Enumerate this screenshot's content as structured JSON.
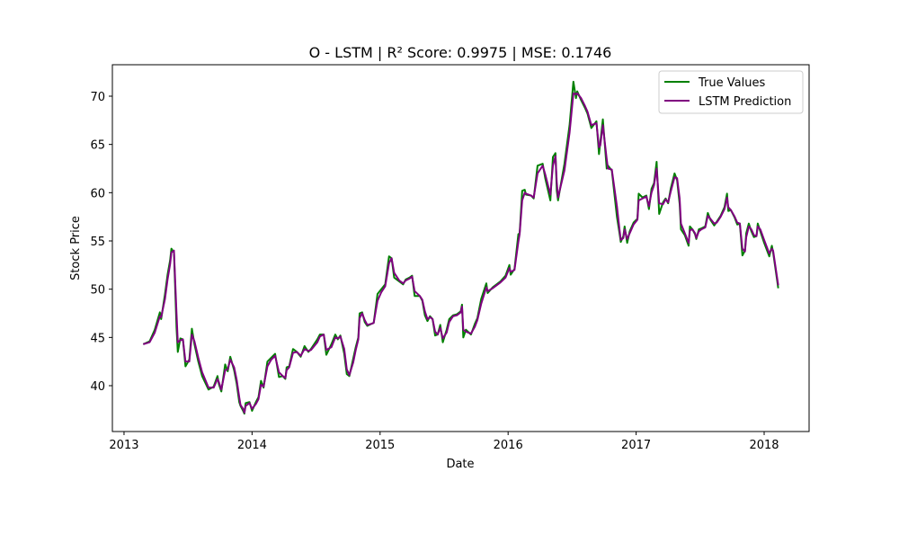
{
  "chart_data": {
    "type": "line",
    "title": "O - LSTM | R² Score: 0.9975 | MSE: 0.1746",
    "x_label": "Date",
    "y_label": "Stock Price",
    "x": [
      2013.15,
      2013.2,
      2013.24,
      2013.28,
      2013.29,
      2013.32,
      2013.34,
      2013.36,
      2013.37,
      2013.39,
      2013.41,
      2013.42,
      2013.44,
      2013.46,
      2013.48,
      2013.51,
      2013.53,
      2013.55,
      2013.58,
      2013.61,
      2013.66,
      2013.7,
      2013.73,
      2013.74,
      2013.76,
      2013.79,
      2013.81,
      2013.83,
      2013.86,
      2013.88,
      2013.9,
      2013.91,
      2013.93,
      2013.94,
      2013.95,
      2013.98,
      2014.0,
      2014.03,
      2014.05,
      2014.07,
      2014.09,
      2014.12,
      2014.15,
      2014.18,
      2014.21,
      2014.24,
      2014.26,
      2014.27,
      2014.29,
      2014.32,
      2014.35,
      2014.38,
      2014.41,
      2014.44,
      2014.46,
      2014.51,
      2014.53,
      2014.56,
      2014.58,
      2014.62,
      2014.65,
      2014.67,
      2014.69,
      2014.72,
      2014.74,
      2014.76,
      2014.79,
      2014.81,
      2014.83,
      2014.84,
      2014.86,
      2014.88,
      2014.9,
      2014.93,
      2014.95,
      2014.98,
      2015.01,
      2015.04,
      2015.07,
      2015.09,
      2015.11,
      2015.15,
      2015.18,
      2015.2,
      2015.23,
      2015.25,
      2015.27,
      2015.31,
      2015.33,
      2015.35,
      2015.37,
      2015.39,
      2015.41,
      2015.43,
      2015.45,
      2015.47,
      2015.49,
      2015.52,
      2015.54,
      2015.57,
      2015.6,
      2015.63,
      2015.64,
      2015.65,
      2015.67,
      2015.71,
      2015.74,
      2015.76,
      2015.79,
      2015.83,
      2015.84,
      2015.88,
      2015.94,
      2015.98,
      2016.01,
      2016.02,
      2016.05,
      2016.08,
      2016.09,
      2016.11,
      2016.13,
      2016.14,
      2016.18,
      2016.2,
      2016.23,
      2016.27,
      2016.29,
      2016.33,
      2016.35,
      2016.37,
      2016.38,
      2016.39,
      2016.44,
      2016.48,
      2016.51,
      2016.53,
      2016.54,
      2016.57,
      2016.6,
      2016.62,
      2016.65,
      2016.69,
      2016.71,
      2016.72,
      2016.74,
      2016.77,
      2016.78,
      2016.81,
      2016.85,
      2016.87,
      2016.88,
      2016.9,
      2016.91,
      2016.93,
      2016.95,
      2016.98,
      2017.01,
      2017.02,
      2017.05,
      2017.08,
      2017.1,
      2017.12,
      2017.14,
      2017.16,
      2017.18,
      2017.21,
      2017.23,
      2017.25,
      2017.27,
      2017.3,
      2017.32,
      2017.34,
      2017.35,
      2017.38,
      2017.41,
      2017.42,
      2017.44,
      2017.46,
      2017.47,
      2017.49,
      2017.51,
      2017.54,
      2017.56,
      2017.58,
      2017.61,
      2017.63,
      2017.66,
      2017.69,
      2017.71,
      2017.72,
      2017.74,
      2017.77,
      2017.79,
      2017.81,
      2017.83,
      2017.85,
      2017.86,
      2017.88,
      2017.9,
      2017.92,
      2017.94,
      2017.95,
      2017.97,
      2018.0,
      2018.04,
      2018.06,
      2018.07,
      2018.11
    ],
    "series": [
      {
        "name": "True Values",
        "color": "#008000",
        "values": [
          44.3,
          44.6,
          45.8,
          47.6,
          46.9,
          49.5,
          51.5,
          53.0,
          54.2,
          53.8,
          46.0,
          43.5,
          44.9,
          44.8,
          42.0,
          42.7,
          45.9,
          44.3,
          42.5,
          41.0,
          39.6,
          39.9,
          41.0,
          40.2,
          39.4,
          42.2,
          41.5,
          43.0,
          41.6,
          40.2,
          38.3,
          37.9,
          37.4,
          37.1,
          38.2,
          38.3,
          37.4,
          38.3,
          38.8,
          40.5,
          39.8,
          42.5,
          42.9,
          43.3,
          40.9,
          41.0,
          40.7,
          41.9,
          42.0,
          43.8,
          43.5,
          43.0,
          44.1,
          43.5,
          43.8,
          44.8,
          45.3,
          45.3,
          43.2,
          44.3,
          45.3,
          44.8,
          45.2,
          43.3,
          41.2,
          41.0,
          42.8,
          44.0,
          45.0,
          47.5,
          47.6,
          46.6,
          46.2,
          46.4,
          46.5,
          49.5,
          50.0,
          50.5,
          53.4,
          53.2,
          51.2,
          50.8,
          50.5,
          51.0,
          51.2,
          51.4,
          49.3,
          49.3,
          48.8,
          47.3,
          46.7,
          47.2,
          46.9,
          45.2,
          45.3,
          46.3,
          44.5,
          45.8,
          46.9,
          47.3,
          47.4,
          47.7,
          48.4,
          45.0,
          45.8,
          45.3,
          46.4,
          47.0,
          49.0,
          50.6,
          49.6,
          50.2,
          50.8,
          51.4,
          52.5,
          51.5,
          52.1,
          55.7,
          55.8,
          60.2,
          60.3,
          59.8,
          59.7,
          59.4,
          62.8,
          63.0,
          61.5,
          59.2,
          63.7,
          64.1,
          60.2,
          59.2,
          63.0,
          67.0,
          71.5,
          69.8,
          70.5,
          69.6,
          68.8,
          68.2,
          66.7,
          67.4,
          64.0,
          65.2,
          67.6,
          62.5,
          62.8,
          62.3,
          57.5,
          55.8,
          54.9,
          55.5,
          56.5,
          54.8,
          56.0,
          56.9,
          57.3,
          59.9,
          59.5,
          59.7,
          58.3,
          60.4,
          61.0,
          63.2,
          57.8,
          59.0,
          59.4,
          58.9,
          60.4,
          62.0,
          61.3,
          58.8,
          56.2,
          55.6,
          54.5,
          56.5,
          56.2,
          55.7,
          55.2,
          56.2,
          56.3,
          56.5,
          57.9,
          57.2,
          56.6,
          57.0,
          57.6,
          58.5,
          59.9,
          58.1,
          58.2,
          57.4,
          56.7,
          56.8,
          53.5,
          54.0,
          55.8,
          56.8,
          56.0,
          55.4,
          55.5,
          56.8,
          56.0,
          54.8,
          53.4,
          54.5,
          53.8,
          50.1
        ]
      },
      {
        "name": "LSTM Prediction",
        "color": "#800080",
        "values": [
          44.3,
          44.5,
          45.5,
          47.2,
          47.1,
          49.0,
          51.0,
          52.6,
          53.8,
          54.0,
          47.5,
          44.5,
          44.7,
          44.8,
          42.5,
          42.5,
          45.3,
          44.6,
          42.9,
          41.4,
          39.8,
          39.8,
          40.7,
          40.4,
          39.6,
          41.6,
          41.7,
          42.7,
          41.9,
          40.6,
          38.8,
          38.0,
          37.6,
          37.2,
          37.9,
          38.2,
          37.6,
          38.1,
          38.6,
          40.1,
          39.9,
          42.0,
          42.7,
          43.1,
          41.4,
          41.0,
          40.8,
          41.6,
          41.9,
          43.4,
          43.5,
          43.1,
          43.8,
          43.6,
          43.7,
          44.5,
          45.1,
          45.3,
          43.7,
          44.0,
          45.0,
          44.9,
          45.1,
          43.8,
          41.7,
          41.1,
          42.4,
          43.7,
          44.8,
          47.0,
          47.5,
          46.8,
          46.3,
          46.4,
          46.5,
          48.8,
          49.7,
          50.3,
          52.7,
          53.2,
          51.7,
          50.9,
          50.6,
          50.9,
          51.1,
          51.3,
          49.8,
          49.3,
          48.9,
          47.7,
          46.9,
          47.1,
          46.9,
          45.6,
          45.3,
          46.0,
          44.9,
          45.5,
          46.6,
          47.2,
          47.3,
          47.6,
          48.2,
          45.8,
          45.6,
          45.4,
          46.1,
          46.8,
          48.5,
          50.2,
          49.8,
          50.1,
          50.7,
          51.2,
          52.2,
          51.8,
          52.0,
          54.9,
          55.7,
          59.2,
          60.0,
          59.9,
          59.7,
          59.5,
          62.0,
          62.8,
          61.9,
          59.8,
          62.8,
          63.8,
          61.1,
          59.5,
          62.3,
          66.2,
          70.3,
          70.2,
          70.3,
          69.8,
          69.0,
          68.4,
          67.0,
          67.2,
          64.7,
          64.9,
          67.0,
          63.5,
          62.5,
          62.4,
          58.6,
          56.2,
          55.1,
          55.3,
          56.2,
          55.2,
          55.8,
          56.7,
          57.2,
          59.2,
          59.4,
          59.6,
          58.6,
          60.0,
          60.8,
          62.5,
          58.9,
          58.8,
          59.3,
          59.0,
          60.1,
          61.6,
          61.5,
          59.4,
          56.8,
          55.8,
          54.8,
          56.1,
          56.2,
          55.8,
          55.3,
          56.0,
          56.2,
          56.4,
          57.6,
          57.3,
          56.8,
          56.9,
          57.5,
          58.3,
          59.5,
          58.5,
          58.2,
          57.5,
          56.9,
          56.8,
          54.2,
          53.9,
          55.4,
          56.5,
          56.2,
          55.6,
          55.5,
          56.5,
          56.2,
          55.1,
          53.7,
          54.2,
          54.0,
          50.4
        ]
      }
    ],
    "xlim": [
      2012.909,
      2018.351
    ],
    "xticks": [
      2013,
      2014,
      2015,
      2016,
      2017,
      2018
    ],
    "ylim": [
      35.25,
      73.26
    ],
    "yticks": [
      40,
      45,
      50,
      55,
      60,
      65,
      70
    ],
    "grid": false,
    "legend": "upper right"
  }
}
